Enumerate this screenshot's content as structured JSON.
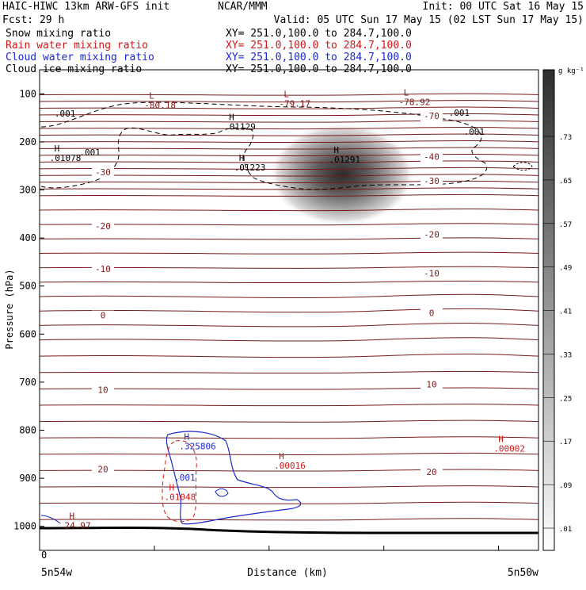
{
  "header": {
    "model": "HAIC-HIWC 13km ARW-GFS init",
    "org": "NCAR/MMM",
    "init": "Init: 00 UTC Sat 16 May 15",
    "fcst": "Fcst:    29 h",
    "valid": "Valid: 05 UTC Sun 17 May 15 (02 LST Sun 17 May 15)"
  },
  "fields": [
    {
      "name": "Snow mixing ratio",
      "xy": "XY= 251.0,100.0 to 284.7,100.0",
      "color": "#000000"
    },
    {
      "name": "Rain water mixing ratio",
      "xy": "XY= 251.0,100.0 to 284.7,100.0",
      "color": "#d01818"
    },
    {
      "name": "Cloud water mixing ratio",
      "xy": "XY= 251.0,100.0 to 284.7,100.0",
      "color": "#1a28d0"
    },
    {
      "name": "Cloud ice mixing ratio",
      "xy": "XY= 251.0,100.0 to 284.7,100.0",
      "color": "#000000"
    }
  ],
  "colors": {
    "temperature": "#7a1a1a",
    "ground": "#000000",
    "rain": "#d01818",
    "cloud_water": "#1a28d0"
  },
  "chart_data": {
    "type": "cross-section",
    "ylabel": "Pressure (hPa)",
    "xlabel": "Distance (km)",
    "x_start_label": "5n54w",
    "x_end_label": "5n50w",
    "x_zero_label": "0",
    "y_ticks": [
      "100",
      "200",
      "300",
      "400",
      "500",
      "600",
      "700",
      "800",
      "900",
      "1000"
    ],
    "ylim": [
      1050,
      50
    ],
    "colorbar": {
      "unit": "g kg⁻¹",
      "ticks": [
        ".01",
        ".09",
        ".17",
        ".25",
        ".33",
        ".41",
        ".49",
        ".57",
        ".65",
        ".73"
      ]
    },
    "isotherm_labels": [
      {
        "text": "-30",
        "p": 263,
        "pos": "left"
      },
      {
        "text": "-20",
        "p": 375,
        "pos": "left"
      },
      {
        "text": "-10",
        "p": 464,
        "pos": "left"
      },
      {
        "text": "0",
        "p": 561,
        "pos": "left"
      },
      {
        "text": "10",
        "p": 716,
        "pos": "left"
      },
      {
        "text": "20",
        "p": 881,
        "pos": "left"
      },
      {
        "text": "-40",
        "p": 231,
        "pos": "right"
      },
      {
        "text": "-30",
        "p": 281,
        "pos": "right"
      },
      {
        "text": "-20",
        "p": 392,
        "pos": "right"
      },
      {
        "text": "-10",
        "p": 473,
        "pos": "right"
      },
      {
        "text": "0",
        "p": 556,
        "pos": "right"
      },
      {
        "text": "10",
        "p": 704,
        "pos": "right"
      },
      {
        "text": "20",
        "p": 887,
        "pos": "right"
      },
      {
        "text": "-70",
        "p": 146,
        "pos": "right"
      }
    ],
    "extrema": [
      {
        "mark": "L",
        "value": "-80.18",
        "p": 110,
        "x": 0.21
      },
      {
        "mark": "L",
        "value": "-79.17",
        "p": 107,
        "x": 0.48
      },
      {
        "mark": "L",
        "value": "-78.92",
        "p": 104,
        "x": 0.72
      },
      {
        "mark": "H",
        "value": ".01129",
        "p": 155,
        "x": 0.37
      },
      {
        "mark": "H",
        "value": ".01078",
        "p": 220,
        "x": 0.02
      },
      {
        "mark": "H",
        "value": ".01223",
        "p": 240,
        "x": 0.39
      },
      {
        "mark": "H",
        "value": ".01291",
        "p": 223,
        "x": 0.58
      },
      {
        "mark": "H",
        "value": ".00002",
        "p": 825,
        "x": 0.91
      },
      {
        "mark": "H",
        "value": ".00016",
        "p": 860,
        "x": 0.47
      },
      {
        "mark": "H",
        "value": ".325806",
        "p": 820,
        "x": 0.28
      },
      {
        "mark": "H",
        "value": ".01048",
        "p": 925,
        "x": 0.25
      },
      {
        "mark": "H",
        "value": "24.97",
        "p": 985,
        "x": 0.05
      }
    ],
    "small_labels": [
      ".001",
      ".001",
      ".001",
      ".001",
      ".001"
    ]
  }
}
